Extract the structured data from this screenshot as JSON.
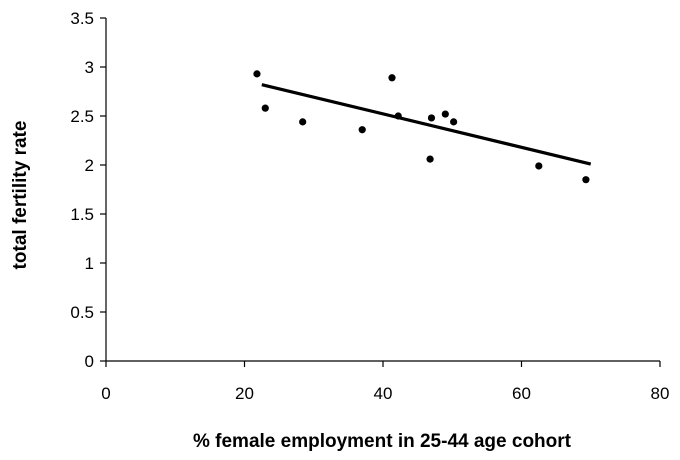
{
  "chart_data": {
    "type": "scatter",
    "xlabel": "% female employment in 25-44 age cohort",
    "ylabel": "total fertility rate",
    "xlim": [
      0,
      80
    ],
    "ylim": [
      0,
      3.5
    ],
    "x_ticks": [
      0,
      20,
      40,
      60,
      80
    ],
    "y_ticks": [
      0,
      0.5,
      1,
      1.5,
      2,
      2.5,
      3,
      3.5
    ],
    "y_tick_labels": [
      "0",
      "0.5",
      "1",
      "1.5",
      "2",
      "2.5",
      "3",
      "3.5"
    ],
    "grid": false,
    "points": [
      {
        "x": 21.8,
        "y": 2.93
      },
      {
        "x": 23.0,
        "y": 2.58
      },
      {
        "x": 28.4,
        "y": 2.44
      },
      {
        "x": 37.0,
        "y": 2.36
      },
      {
        "x": 41.3,
        "y": 2.89
      },
      {
        "x": 42.2,
        "y": 2.5
      },
      {
        "x": 47.0,
        "y": 2.48
      },
      {
        "x": 46.8,
        "y": 2.06
      },
      {
        "x": 49.0,
        "y": 2.52
      },
      {
        "x": 50.2,
        "y": 2.44
      },
      {
        "x": 62.5,
        "y": 1.99
      },
      {
        "x": 69.3,
        "y": 1.85
      }
    ],
    "trendline": {
      "x": [
        22.5,
        70.0
      ],
      "y": [
        2.82,
        2.01
      ]
    }
  }
}
